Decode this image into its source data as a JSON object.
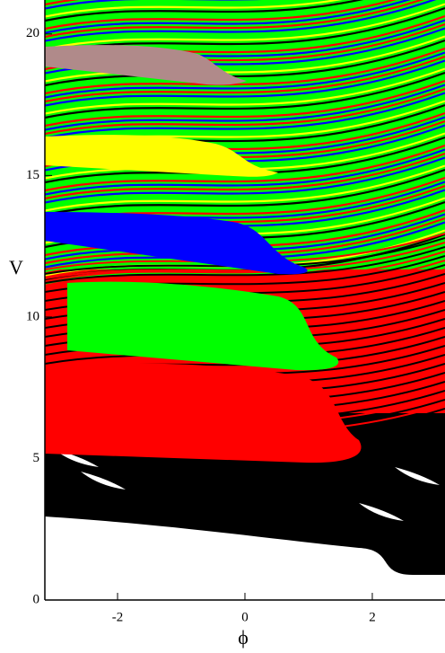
{
  "chart_data": {
    "type": "basin",
    "xlabel": "ϕ",
    "ylabel": "V",
    "xlim": [
      -3.14159,
      3.14159
    ],
    "ylim": [
      0,
      21.2
    ],
    "xticks": [
      -2,
      0,
      2
    ],
    "yticks": [
      0,
      5,
      10,
      15,
      20
    ],
    "colors": [
      "#000000",
      "#ff0000",
      "#00ff00",
      "#0000ff",
      "#ffff00",
      "#b08a8a",
      "#ffffff"
    ]
  }
}
